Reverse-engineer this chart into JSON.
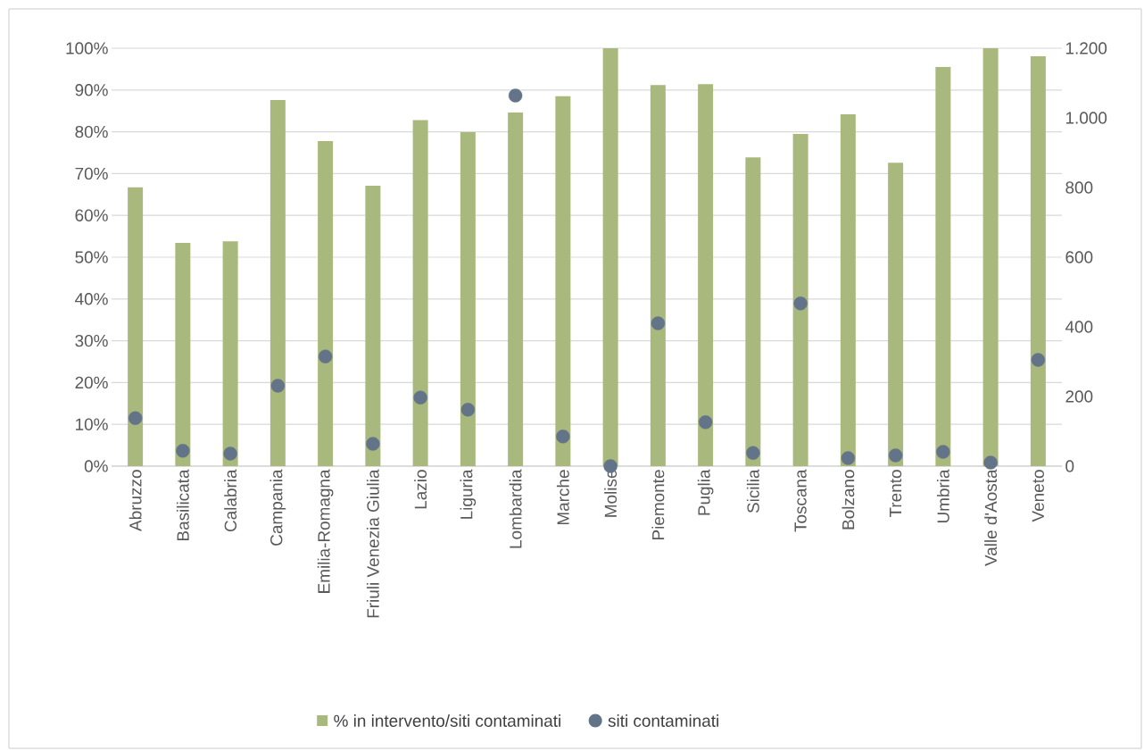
{
  "chart_data": {
    "type": "bar",
    "categories": [
      "Abruzzo",
      "Basilicata",
      "Calabria",
      "Campania",
      "Emilia-Romagna",
      "Friuli Venezia Giulia",
      "Lazio",
      "Liguria",
      "Lombardia",
      "Marche",
      "Molise",
      "Piemonte",
      "Puglia",
      "Sicilia",
      "Toscana",
      "Bolzano",
      "Trento",
      "Umbria",
      "Valle d'Aosta",
      "Veneto"
    ],
    "series": [
      {
        "name": "% in intervento/siti contaminati",
        "color": "#a9b97d",
        "values": [
          66.7,
          53.4,
          53.8,
          87.6,
          77.8,
          67.1,
          82.8,
          79.9,
          84.6,
          88.5,
          100,
          91.2,
          91.4,
          73.9,
          79.5,
          84.2,
          72.6,
          95.5,
          100,
          98.1
        ]
      },
      {
        "name": "siti contaminati",
        "type": "scatter",
        "axis": "y2",
        "color": "#637489",
        "values": [
          138,
          44,
          36,
          231,
          315,
          64,
          197,
          162,
          1064,
          85,
          0,
          410,
          126,
          38,
          467,
          23,
          31,
          41,
          10,
          305
        ]
      }
    ],
    "ylim": [
      0,
      100
    ],
    "yticks": [
      {
        "value": 0,
        "label": "0%"
      },
      {
        "value": 10,
        "label": "10%"
      },
      {
        "value": 20,
        "label": "20%"
      },
      {
        "value": 30,
        "label": "30%"
      },
      {
        "value": 40,
        "label": "40%"
      },
      {
        "value": 50,
        "label": "50%"
      },
      {
        "value": 60,
        "label": "60%"
      },
      {
        "value": 70,
        "label": "70%"
      },
      {
        "value": 80,
        "label": "80%"
      },
      {
        "value": 90,
        "label": "90%"
      },
      {
        "value": 100,
        "label": "100%"
      }
    ],
    "y2lim": [
      0,
      1200
    ],
    "y2ticks": [
      0,
      200,
      400,
      600,
      800,
      {
        "value": 1000,
        "label": "1.000"
      },
      {
        "value": 1200,
        "label": "1.200"
      }
    ],
    "grid": "y",
    "legend": "bottom",
    "marker": "circle"
  }
}
